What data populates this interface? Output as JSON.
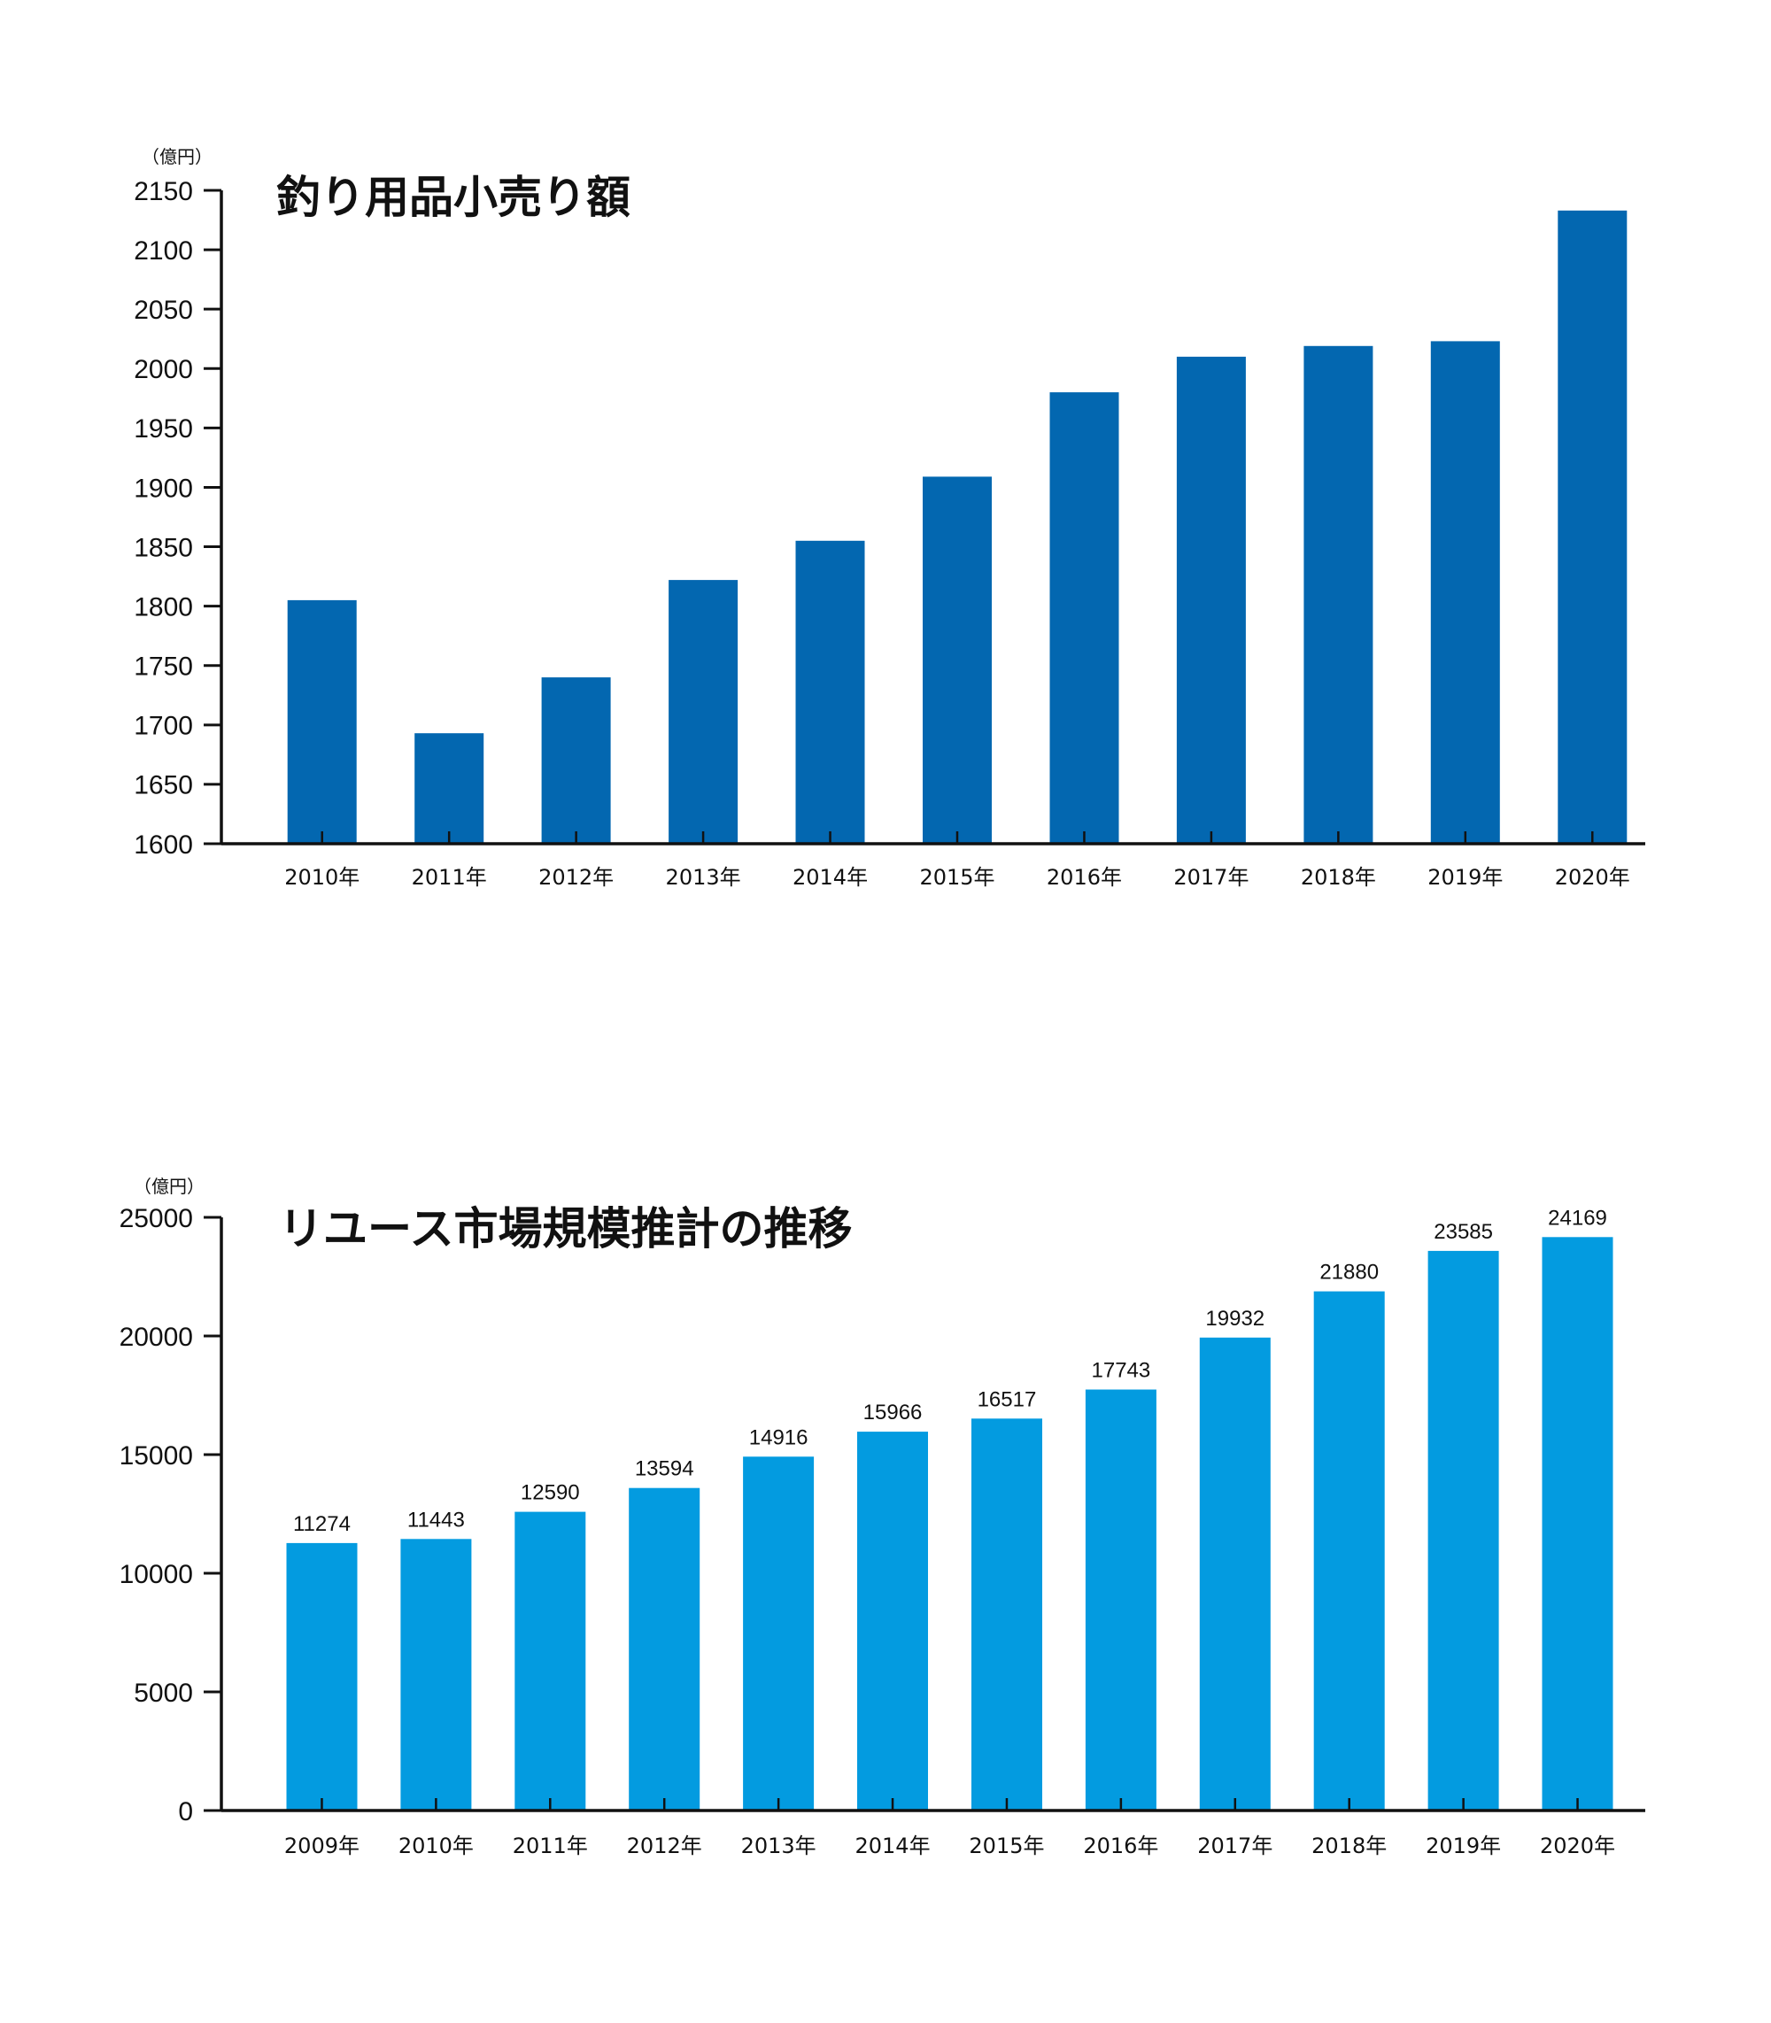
{
  "chart_data": [
    {
      "type": "bar",
      "title": "釣り用品小売り額",
      "unit_label": "（億円）",
      "categories": [
        "2010年",
        "2011年",
        "2012年",
        "2013年",
        "2014年",
        "2015年",
        "2016年",
        "2017年",
        "2018年",
        "2019年",
        "2020年"
      ],
      "values": [
        1805,
        1693,
        1740,
        1822,
        1855,
        1909,
        1980,
        2010,
        2019,
        2023,
        2133
      ],
      "ylim": [
        1600,
        2150
      ],
      "yticks": [
        "1600",
        "1650",
        "1700",
        "1750",
        "1800",
        "1850",
        "1900",
        "1950",
        "2000",
        "2050",
        "2100",
        "2150"
      ],
      "color": "#0367b0",
      "grid": false,
      "data_labels": []
    },
    {
      "type": "bar",
      "title": "リユース市場規模推計の推移",
      "unit_label": "（億円）",
      "categories": [
        "2009年",
        "2010年",
        "2011年",
        "2012年",
        "2013年",
        "2014年",
        "2015年",
        "2016年",
        "2017年",
        "2018年",
        "2019年",
        "2020年"
      ],
      "values": [
        11274,
        11443,
        12590,
        13594,
        14916,
        15966,
        16517,
        17743,
        19932,
        21880,
        23585,
        24169
      ],
      "ylim": [
        0,
        25000
      ],
      "yticks": [
        "0",
        "5000",
        "10000",
        "15000",
        "20000",
        "25000"
      ],
      "color": "#039be0",
      "grid": false,
      "data_labels": [
        "11274",
        "11443",
        "12590",
        "13594",
        "14916",
        "15966",
        "16517",
        "17743",
        "19932",
        "21880",
        "23585",
        "24169"
      ]
    }
  ]
}
